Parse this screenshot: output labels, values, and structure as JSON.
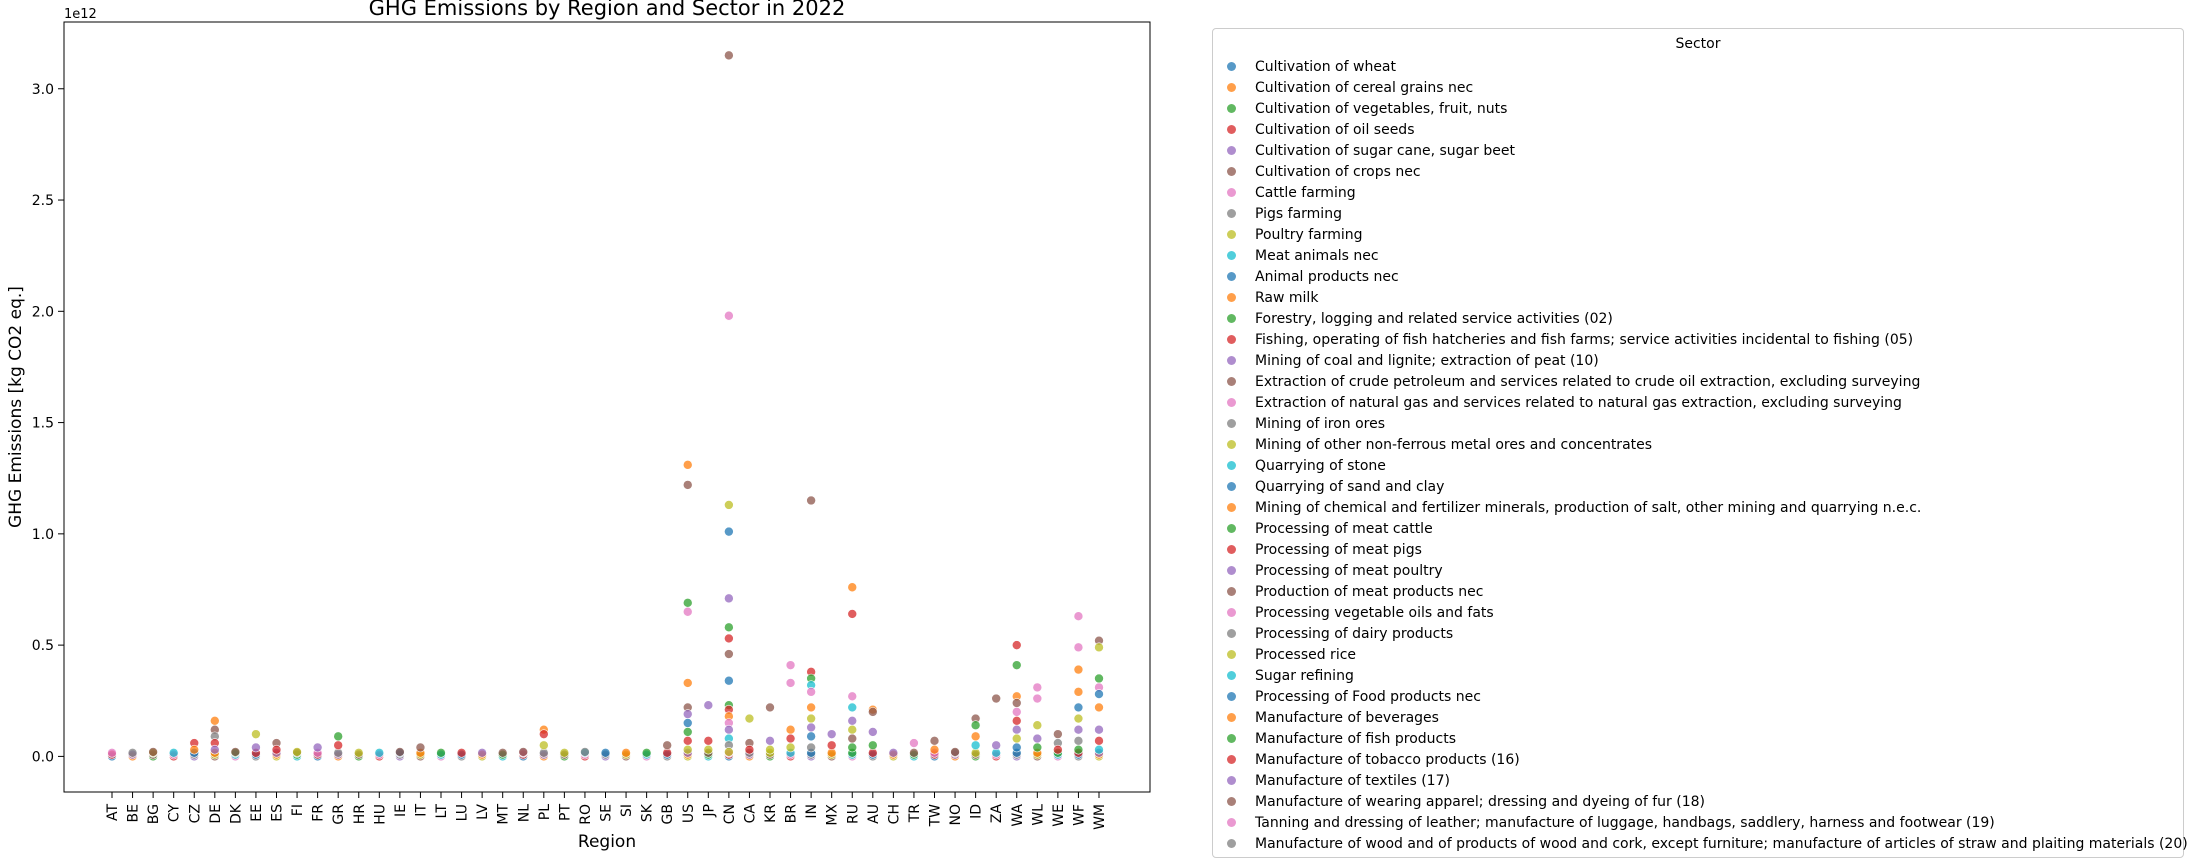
{
  "chart_data": {
    "type": "scatter",
    "title": "GHG Emissions by Region and Sector in 2022",
    "xlabel": "Region",
    "ylabel": "GHG Emissions [kg CO2 eq.]",
    "y_offset_text": "1e12",
    "y_unit_scale": 1000000000000,
    "ylim": [
      -0.16,
      3.3
    ],
    "yticks": [
      0.0,
      0.5,
      1.0,
      1.5,
      2.0,
      2.5,
      3.0
    ],
    "ytick_labels": [
      "0.0",
      "0.5",
      "1.0",
      "1.5",
      "2.0",
      "2.5",
      "3.0"
    ],
    "grid": false,
    "legend": {
      "title": "Sector",
      "placement": "outside-right"
    },
    "categories": [
      "AT",
      "BE",
      "BG",
      "CY",
      "CZ",
      "DE",
      "DK",
      "EE",
      "ES",
      "FI",
      "FR",
      "GR",
      "HR",
      "HU",
      "IE",
      "IT",
      "LT",
      "LU",
      "LV",
      "MT",
      "NL",
      "PL",
      "PT",
      "RO",
      "SE",
      "SI",
      "SK",
      "GB",
      "US",
      "JP",
      "CN",
      "CA",
      "KR",
      "BR",
      "IN",
      "MX",
      "RU",
      "AU",
      "CH",
      "TR",
      "TW",
      "NO",
      "ID",
      "ZA",
      "WA",
      "WL",
      "WE",
      "WF",
      "WM"
    ],
    "colors": [
      "#1f77b4",
      "#ff7f0e",
      "#2ca02c",
      "#d62728",
      "#9467bd",
      "#8c564b",
      "#e377c2",
      "#7f7f7f",
      "#bcbd22",
      "#17becf"
    ],
    "series": [
      {
        "name": "Cultivation of wheat",
        "color": "#1f77b4"
      },
      {
        "name": "Cultivation of cereal grains nec",
        "color": "#ff7f0e"
      },
      {
        "name": "Cultivation of vegetables, fruit, nuts",
        "color": "#2ca02c"
      },
      {
        "name": "Cultivation of oil seeds",
        "color": "#d62728"
      },
      {
        "name": "Cultivation of sugar cane, sugar beet",
        "color": "#9467bd"
      },
      {
        "name": "Cultivation of crops nec",
        "color": "#8c564b"
      },
      {
        "name": "Cattle farming",
        "color": "#e377c2"
      },
      {
        "name": "Pigs farming",
        "color": "#7f7f7f"
      },
      {
        "name": "Poultry farming",
        "color": "#bcbd22"
      },
      {
        "name": "Meat animals nec",
        "color": "#17becf"
      },
      {
        "name": "Animal products nec",
        "color": "#1f77b4"
      },
      {
        "name": "Raw milk",
        "color": "#ff7f0e"
      },
      {
        "name": "Forestry, logging and related service activities (02)",
        "color": "#2ca02c"
      },
      {
        "name": "Fishing, operating of fish hatcheries and fish farms; service activities incidental to fishing (05)",
        "color": "#d62728"
      },
      {
        "name": "Mining of coal and lignite; extraction of peat (10)",
        "color": "#9467bd"
      },
      {
        "name": "Extraction of crude petroleum and services related to crude oil extraction, excluding surveying",
        "color": "#8c564b"
      },
      {
        "name": "Extraction of natural gas and services related to natural gas extraction, excluding surveying",
        "color": "#e377c2"
      },
      {
        "name": "Mining of iron ores",
        "color": "#7f7f7f"
      },
      {
        "name": "Mining of other non-ferrous metal ores and concentrates",
        "color": "#bcbd22"
      },
      {
        "name": "Quarrying of stone",
        "color": "#17becf"
      },
      {
        "name": "Quarrying of sand and clay",
        "color": "#1f77b4"
      },
      {
        "name": "Mining of chemical and fertilizer minerals, production of salt, other mining and quarrying n.e.c.",
        "color": "#ff7f0e"
      },
      {
        "name": "Processing of meat cattle",
        "color": "#2ca02c"
      },
      {
        "name": "Processing of meat pigs",
        "color": "#d62728"
      },
      {
        "name": "Processing of meat poultry",
        "color": "#9467bd"
      },
      {
        "name": "Production of meat products nec",
        "color": "#8c564b"
      },
      {
        "name": "Processing vegetable oils and fats",
        "color": "#e377c2"
      },
      {
        "name": "Processing of dairy products",
        "color": "#7f7f7f"
      },
      {
        "name": "Processed rice",
        "color": "#bcbd22"
      },
      {
        "name": "Sugar refining",
        "color": "#17becf"
      },
      {
        "name": "Processing of Food products nec",
        "color": "#1f77b4"
      },
      {
        "name": "Manufacture of beverages",
        "color": "#ff7f0e"
      },
      {
        "name": "Manufacture of fish products",
        "color": "#2ca02c"
      },
      {
        "name": "Manufacture of tobacco products (16)",
        "color": "#d62728"
      },
      {
        "name": "Manufacture of textiles (17)",
        "color": "#9467bd"
      },
      {
        "name": "Manufacture of wearing apparel; dressing and dyeing of fur (18)",
        "color": "#8c564b"
      },
      {
        "name": "Tanning and dressing of leather; manufacture of luggage, handbags, saddlery, harness and footwear (19)",
        "color": "#e377c2"
      },
      {
        "name": "Manufacture of wood and of products of wood and cork, except furniture; manufacture of articles of straw and plaiting materials (20)",
        "color": "#7f7f7f"
      }
    ],
    "points": [
      {
        "x": "CN",
        "y": 3.15,
        "color": "#8c564b"
      },
      {
        "x": "CN",
        "y": 1.98,
        "color": "#e377c2"
      },
      {
        "x": "CN",
        "y": 1.13,
        "color": "#bcbd22"
      },
      {
        "x": "CN",
        "y": 1.01,
        "color": "#1f77b4"
      },
      {
        "x": "CN",
        "y": 0.71,
        "color": "#9467bd"
      },
      {
        "x": "CN",
        "y": 0.58,
        "color": "#2ca02c"
      },
      {
        "x": "CN",
        "y": 0.53,
        "color": "#d62728"
      },
      {
        "x": "CN",
        "y": 0.46,
        "color": "#8c564b"
      },
      {
        "x": "CN",
        "y": 0.34,
        "color": "#1f77b4"
      },
      {
        "x": "CN",
        "y": 0.23,
        "color": "#2ca02c"
      },
      {
        "x": "CN",
        "y": 0.21,
        "color": "#d62728"
      },
      {
        "x": "CN",
        "y": 0.18,
        "color": "#ff7f0e"
      },
      {
        "x": "CN",
        "y": 0.15,
        "color": "#e377c2"
      },
      {
        "x": "CN",
        "y": 0.12,
        "color": "#9467bd"
      },
      {
        "x": "CN",
        "y": 0.08,
        "color": "#17becf"
      },
      {
        "x": "CN",
        "y": 0.05,
        "color": "#7f7f7f"
      },
      {
        "x": "CN",
        "y": 0.02,
        "color": "#bcbd22"
      },
      {
        "x": "US",
        "y": 1.31,
        "color": "#ff7f0e"
      },
      {
        "x": "US",
        "y": 1.22,
        "color": "#8c564b"
      },
      {
        "x": "US",
        "y": 0.69,
        "color": "#2ca02c"
      },
      {
        "x": "US",
        "y": 0.65,
        "color": "#e377c2"
      },
      {
        "x": "US",
        "y": 0.33,
        "color": "#ff7f0e"
      },
      {
        "x": "US",
        "y": 0.22,
        "color": "#8c564b"
      },
      {
        "x": "US",
        "y": 0.19,
        "color": "#9467bd"
      },
      {
        "x": "US",
        "y": 0.15,
        "color": "#1f77b4"
      },
      {
        "x": "US",
        "y": 0.11,
        "color": "#2ca02c"
      },
      {
        "x": "US",
        "y": 0.07,
        "color": "#d62728"
      },
      {
        "x": "US",
        "y": 0.03,
        "color": "#bcbd22"
      },
      {
        "x": "IN",
        "y": 1.15,
        "color": "#8c564b"
      },
      {
        "x": "IN",
        "y": 0.38,
        "color": "#d62728"
      },
      {
        "x": "IN",
        "y": 0.35,
        "color": "#2ca02c"
      },
      {
        "x": "IN",
        "y": 0.32,
        "color": "#17becf"
      },
      {
        "x": "IN",
        "y": 0.29,
        "color": "#e377c2"
      },
      {
        "x": "IN",
        "y": 0.22,
        "color": "#ff7f0e"
      },
      {
        "x": "IN",
        "y": 0.17,
        "color": "#bcbd22"
      },
      {
        "x": "IN",
        "y": 0.13,
        "color": "#9467bd"
      },
      {
        "x": "IN",
        "y": 0.09,
        "color": "#1f77b4"
      },
      {
        "x": "IN",
        "y": 0.04,
        "color": "#7f7f7f"
      },
      {
        "x": "RU",
        "y": 0.76,
        "color": "#ff7f0e"
      },
      {
        "x": "RU",
        "y": 0.64,
        "color": "#d62728"
      },
      {
        "x": "RU",
        "y": 0.27,
        "color": "#e377c2"
      },
      {
        "x": "RU",
        "y": 0.22,
        "color": "#17becf"
      },
      {
        "x": "RU",
        "y": 0.16,
        "color": "#9467bd"
      },
      {
        "x": "RU",
        "y": 0.12,
        "color": "#bcbd22"
      },
      {
        "x": "RU",
        "y": 0.08,
        "color": "#8c564b"
      },
      {
        "x": "RU",
        "y": 0.04,
        "color": "#2ca02c"
      },
      {
        "x": "WF",
        "y": 0.63,
        "color": "#e377c2"
      },
      {
        "x": "WF",
        "y": 0.49,
        "color": "#e377c2"
      },
      {
        "x": "WF",
        "y": 0.39,
        "color": "#ff7f0e"
      },
      {
        "x": "WF",
        "y": 0.29,
        "color": "#ff7f0e"
      },
      {
        "x": "WF",
        "y": 0.22,
        "color": "#1f77b4"
      },
      {
        "x": "WF",
        "y": 0.17,
        "color": "#bcbd22"
      },
      {
        "x": "WF",
        "y": 0.12,
        "color": "#9467bd"
      },
      {
        "x": "WF",
        "y": 0.07,
        "color": "#7f7f7f"
      },
      {
        "x": "WF",
        "y": 0.03,
        "color": "#2ca02c"
      },
      {
        "x": "WM",
        "y": 0.52,
        "color": "#8c564b"
      },
      {
        "x": "WM",
        "y": 0.49,
        "color": "#bcbd22"
      },
      {
        "x": "WM",
        "y": 0.35,
        "color": "#2ca02c"
      },
      {
        "x": "WM",
        "y": 0.31,
        "color": "#e377c2"
      },
      {
        "x": "WM",
        "y": 0.28,
        "color": "#1f77b4"
      },
      {
        "x": "WM",
        "y": 0.22,
        "color": "#ff7f0e"
      },
      {
        "x": "WM",
        "y": 0.12,
        "color": "#9467bd"
      },
      {
        "x": "WM",
        "y": 0.07,
        "color": "#d62728"
      },
      {
        "x": "WM",
        "y": 0.03,
        "color": "#17becf"
      },
      {
        "x": "WA",
        "y": 0.5,
        "color": "#d62728"
      },
      {
        "x": "WA",
        "y": 0.41,
        "color": "#2ca02c"
      },
      {
        "x": "WA",
        "y": 0.27,
        "color": "#ff7f0e"
      },
      {
        "x": "WA",
        "y": 0.24,
        "color": "#8c564b"
      },
      {
        "x": "WA",
        "y": 0.2,
        "color": "#e377c2"
      },
      {
        "x": "WA",
        "y": 0.16,
        "color": "#d62728"
      },
      {
        "x": "WA",
        "y": 0.12,
        "color": "#9467bd"
      },
      {
        "x": "WA",
        "y": 0.08,
        "color": "#bcbd22"
      },
      {
        "x": "WA",
        "y": 0.04,
        "color": "#1f77b4"
      },
      {
        "x": "WL",
        "y": 0.31,
        "color": "#e377c2"
      },
      {
        "x": "WL",
        "y": 0.26,
        "color": "#e377c2"
      },
      {
        "x": "WL",
        "y": 0.14,
        "color": "#bcbd22"
      },
      {
        "x": "WL",
        "y": 0.08,
        "color": "#9467bd"
      },
      {
        "x": "WL",
        "y": 0.04,
        "color": "#2ca02c"
      },
      {
        "x": "BR",
        "y": 0.41,
        "color": "#e377c2"
      },
      {
        "x": "BR",
        "y": 0.33,
        "color": "#e377c2"
      },
      {
        "x": "BR",
        "y": 0.12,
        "color": "#ff7f0e"
      },
      {
        "x": "BR",
        "y": 0.08,
        "color": "#d62728"
      },
      {
        "x": "BR",
        "y": 0.04,
        "color": "#bcbd22"
      },
      {
        "x": "ZA",
        "y": 0.26,
        "color": "#8c564b"
      },
      {
        "x": "ZA",
        "y": 0.05,
        "color": "#9467bd"
      },
      {
        "x": "ID",
        "y": 0.17,
        "color": "#8c564b"
      },
      {
        "x": "ID",
        "y": 0.14,
        "color": "#2ca02c"
      },
      {
        "x": "ID",
        "y": 0.09,
        "color": "#ff7f0e"
      },
      {
        "x": "ID",
        "y": 0.05,
        "color": "#17becf"
      },
      {
        "x": "JP",
        "y": 0.23,
        "color": "#9467bd"
      },
      {
        "x": "JP",
        "y": 0.07,
        "color": "#d62728"
      },
      {
        "x": "JP",
        "y": 0.03,
        "color": "#bcbd22"
      },
      {
        "x": "AU",
        "y": 0.21,
        "color": "#ff7f0e"
      },
      {
        "x": "AU",
        "y": 0.2,
        "color": "#8c564b"
      },
      {
        "x": "AU",
        "y": 0.11,
        "color": "#9467bd"
      },
      {
        "x": "AU",
        "y": 0.05,
        "color": "#2ca02c"
      },
      {
        "x": "KR",
        "y": 0.22,
        "color": "#8c564b"
      },
      {
        "x": "KR",
        "y": 0.07,
        "color": "#9467bd"
      },
      {
        "x": "KR",
        "y": 0.03,
        "color": "#bcbd22"
      },
      {
        "x": "CA",
        "y": 0.17,
        "color": "#bcbd22"
      },
      {
        "x": "CA",
        "y": 0.06,
        "color": "#8c564b"
      },
      {
        "x": "CA",
        "y": 0.03,
        "color": "#d62728"
      },
      {
        "x": "MX",
        "y": 0.1,
        "color": "#9467bd"
      },
      {
        "x": "MX",
        "y": 0.05,
        "color": "#d62728"
      },
      {
        "x": "DE",
        "y": 0.16,
        "color": "#ff7f0e"
      },
      {
        "x": "DE",
        "y": 0.12,
        "color": "#8c564b"
      },
      {
        "x": "DE",
        "y": 0.09,
        "color": "#7f7f7f"
      },
      {
        "x": "DE",
        "y": 0.06,
        "color": "#d62728"
      },
      {
        "x": "DE",
        "y": 0.03,
        "color": "#9467bd"
      },
      {
        "x": "PL",
        "y": 0.12,
        "color": "#ff7f0e"
      },
      {
        "x": "PL",
        "y": 0.1,
        "color": "#d62728"
      },
      {
        "x": "PL",
        "y": 0.05,
        "color": "#bcbd22"
      },
      {
        "x": "EE",
        "y": 0.1,
        "color": "#bcbd22"
      },
      {
        "x": "EE",
        "y": 0.04,
        "color": "#9467bd"
      },
      {
        "x": "GR",
        "y": 0.09,
        "color": "#2ca02c"
      },
      {
        "x": "GR",
        "y": 0.05,
        "color": "#d62728"
      },
      {
        "x": "CZ",
        "y": 0.06,
        "color": "#d62728"
      },
      {
        "x": "CZ",
        "y": 0.03,
        "color": "#ff7f0e"
      },
      {
        "x": "ES",
        "y": 0.06,
        "color": "#8c564b"
      },
      {
        "x": "ES",
        "y": 0.03,
        "color": "#d62728"
      },
      {
        "x": "GB",
        "y": 0.05,
        "color": "#8c564b"
      },
      {
        "x": "TR",
        "y": 0.06,
        "color": "#e377c2"
      },
      {
        "x": "TW",
        "y": 0.07,
        "color": "#8c564b"
      },
      {
        "x": "TW",
        "y": 0.03,
        "color": "#ff7f0e"
      },
      {
        "x": "WE",
        "y": 0.1,
        "color": "#8c564b"
      },
      {
        "x": "WE",
        "y": 0.06,
        "color": "#7f7f7f"
      },
      {
        "x": "WE",
        "y": 0.03,
        "color": "#d62728"
      },
      {
        "x": "FR",
        "y": 0.04,
        "color": "#9467bd"
      },
      {
        "x": "IT",
        "y": 0.04,
        "color": "#8c564b"
      },
      {
        "x": "BG",
        "y": 0.02,
        "color": "#8c564b"
      },
      {
        "x": "NL",
        "y": 0.02,
        "color": "#8c564b"
      },
      {
        "x": "RO",
        "y": 0.02,
        "color": "#7f7f7f"
      },
      {
        "x": "IE",
        "y": 0.02,
        "color": "#8c564b"
      },
      {
        "x": "NO",
        "y": 0.02,
        "color": "#8c564b"
      },
      {
        "x": "DK",
        "y": 0.02,
        "color": "#8c564b"
      },
      {
        "x": "FI",
        "y": 0.02,
        "color": "#bcbd22"
      }
    ]
  }
}
